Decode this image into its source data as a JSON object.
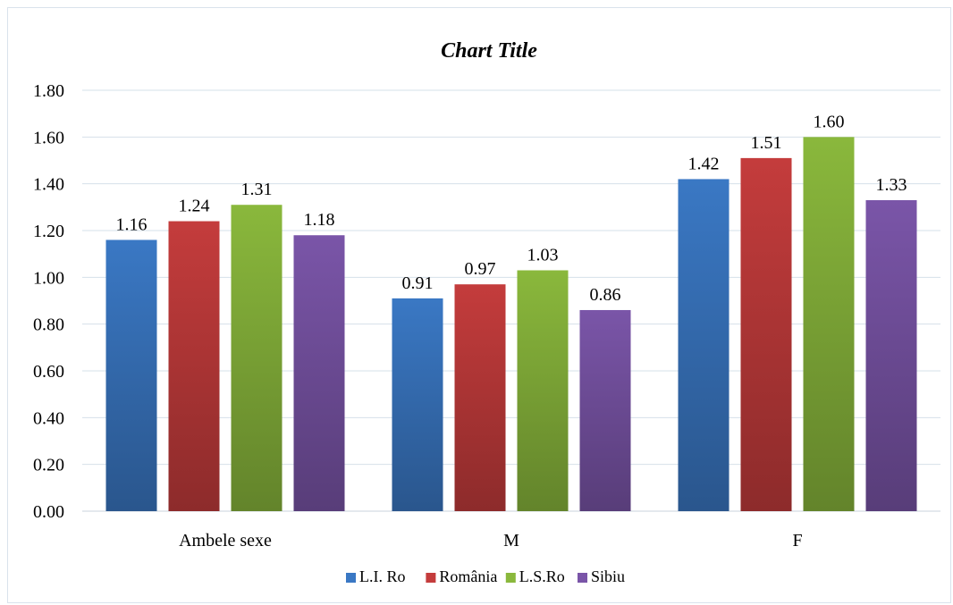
{
  "chart_data": {
    "type": "bar",
    "title": "Chart Title",
    "xlabel": "",
    "ylabel": "",
    "categories": [
      "Ambele sexe",
      "M",
      "F"
    ],
    "ylim": [
      0,
      1.8
    ],
    "yticks": [
      "0.00",
      "0.20",
      "0.40",
      "0.60",
      "0.80",
      "1.00",
      "1.20",
      "1.40",
      "1.60",
      "1.80"
    ],
    "grid": true,
    "legend_position": "bottom",
    "series": [
      {
        "name": "L.I. Ro",
        "color": "#3a78c4",
        "values": [
          1.16,
          0.91,
          1.42
        ],
        "labels": [
          "1.16",
          "0.91",
          "1.42"
        ]
      },
      {
        "name": "România",
        "color": "#c43c3c",
        "values": [
          1.24,
          0.97,
          1.51
        ],
        "labels": [
          "1.24",
          "0.97",
          "1.51"
        ]
      },
      {
        "name": "L.S.Ro",
        "color": "#8ab83c",
        "values": [
          1.31,
          1.03,
          1.6
        ],
        "labels": [
          "1.31",
          "1.03",
          "1.60"
        ]
      },
      {
        "name": "Sibiu",
        "color": "#7a55a8",
        "values": [
          1.18,
          0.86,
          1.33
        ],
        "labels": [
          "1.18",
          "0.86",
          "1.33"
        ]
      }
    ]
  }
}
